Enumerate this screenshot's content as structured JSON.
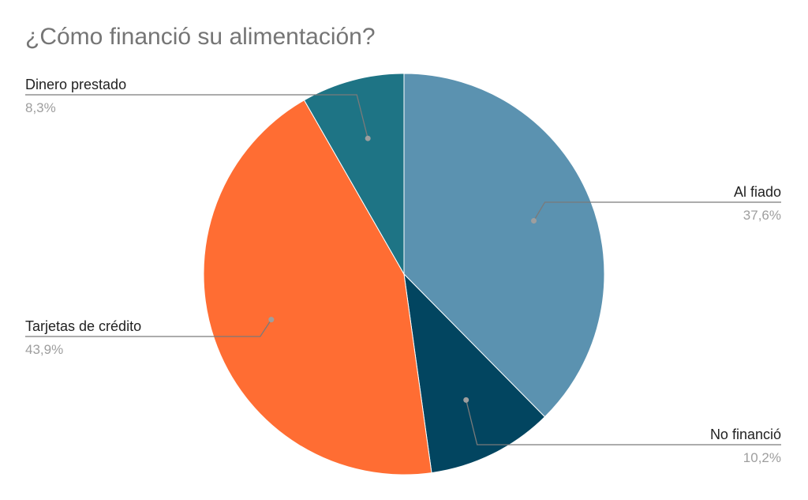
{
  "chart_data": {
    "type": "pie",
    "title": "¿Cómo financió su alimentación?",
    "slices": [
      {
        "name": "Al fiado",
        "value": 37.6,
        "label": "37,6%",
        "color": "#5b92b0"
      },
      {
        "name": "No financió",
        "value": 10.2,
        "label": "10,2%",
        "color": "#024560"
      },
      {
        "name": "Tarjetas de crédito",
        "value": 43.9,
        "label": "43,9%",
        "color": "#ff6d33"
      },
      {
        "name": "Dinero prestado",
        "value": 8.3,
        "label": "8,3%",
        "color": "#1e7485"
      }
    ],
    "start_angle_deg": 0,
    "direction": "clockwise",
    "legend": "none"
  }
}
